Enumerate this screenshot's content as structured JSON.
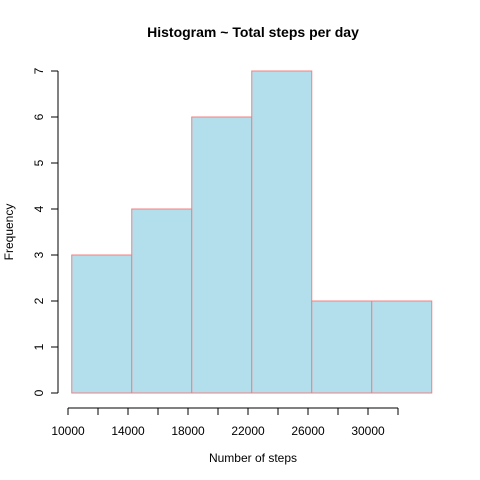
{
  "chart_data": {
    "type": "bar",
    "title": "Histogram ~ Total steps per day",
    "xlabel": "Number of steps",
    "ylabel": "Frequency",
    "bins": [
      {
        "start": 10250,
        "end": 14250,
        "count": 3
      },
      {
        "start": 14250,
        "end": 18250,
        "count": 4
      },
      {
        "start": 18250,
        "end": 22250,
        "count": 6
      },
      {
        "start": 22250,
        "end": 26250,
        "count": 7
      },
      {
        "start": 26250,
        "end": 30250,
        "count": 2
      },
      {
        "start": 30250,
        "end": 34250,
        "count": 2
      }
    ],
    "x_tick_values": [
      10000,
      12000,
      14000,
      16000,
      18000,
      20000,
      22000,
      24000,
      26000,
      28000,
      30000,
      32000
    ],
    "x_tick_labels": [
      "10000",
      "14000",
      "18000",
      "22000",
      "26000",
      "30000"
    ],
    "y_tick_labels": [
      "0",
      "1",
      "2",
      "3",
      "4",
      "5",
      "6",
      "7"
    ],
    "xlim": [
      10000,
      34250
    ],
    "ylim": [
      0,
      7
    ],
    "grid": false,
    "legend": "none",
    "bar_fill": "#b3dfed",
    "bar_border": "#f08080"
  }
}
